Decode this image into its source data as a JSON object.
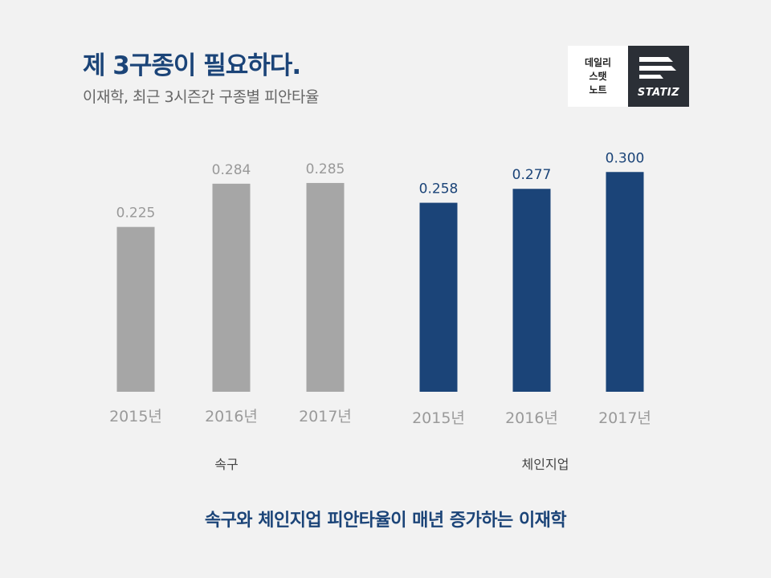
{
  "header": {
    "title": "제 3구종이 필요하다.",
    "subtitle": "이재학, 최근 3시즌간 구종별 피안타율"
  },
  "logo": {
    "lines": [
      "데일리",
      "스탯",
      "노트"
    ],
    "brand": "STATIZ"
  },
  "chart_data": [
    {
      "type": "bar",
      "title": "속구",
      "categories": [
        "2015년",
        "2016년",
        "2017년"
      ],
      "values": [
        0.225,
        0.284,
        0.285
      ],
      "value_labels": [
        "0.225",
        "0.284",
        "0.285"
      ],
      "color": "#a6a6a6",
      "label_color": "#999999",
      "ylim": [
        0,
        0.32
      ]
    },
    {
      "type": "bar",
      "title": "체인지업",
      "categories": [
        "2015년",
        "2016년",
        "2017년"
      ],
      "values": [
        0.258,
        0.277,
        0.3
      ],
      "value_labels": [
        "0.258",
        "0.277",
        "0.300"
      ],
      "color": "#1b4478",
      "label_color": "#1b4478",
      "ylim": [
        0,
        0.32
      ]
    }
  ],
  "caption": "속구와 체인지업 피안타율이 매년 증가하는 이재학"
}
